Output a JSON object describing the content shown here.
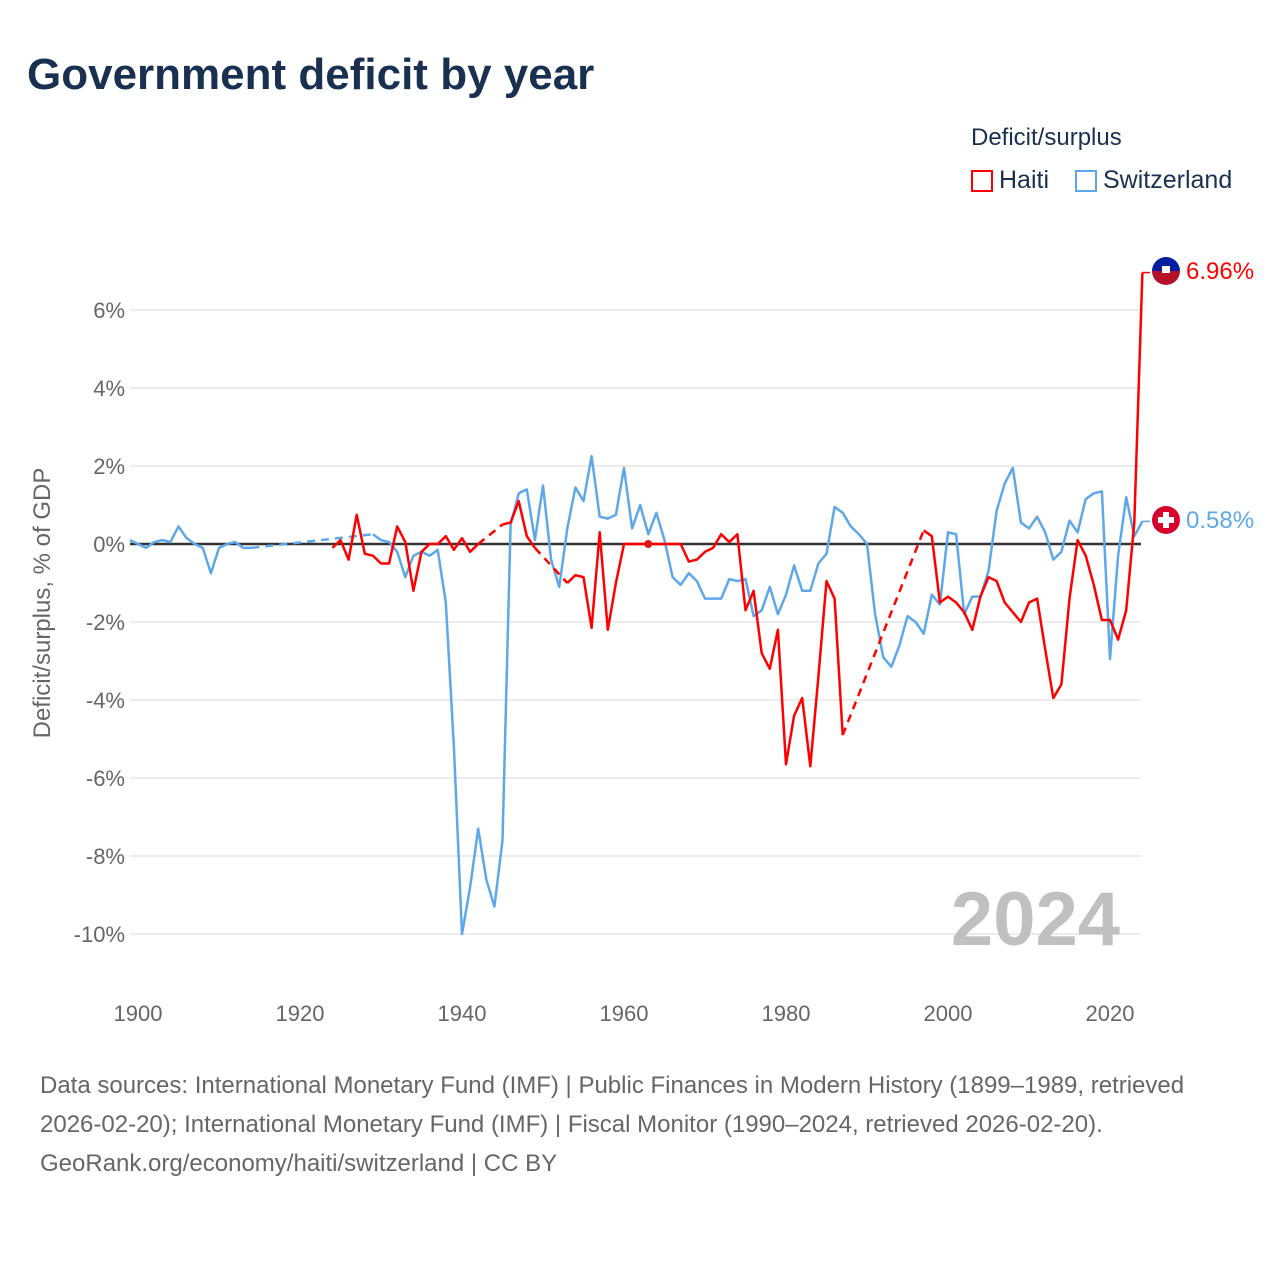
{
  "title": "Government deficit by year",
  "legend": {
    "title": "Deficit/surplus",
    "items": [
      "Haiti",
      "Switzerland"
    ]
  },
  "colors": {
    "Haiti": "#ff0000",
    "Switzerland": "#5ea8ea"
  },
  "year_watermark": "2024",
  "end_labels": {
    "Haiti": "6.96%",
    "Switzerland": "0.58%"
  },
  "footer": {
    "sources": "Data sources: International Monetary Fund (IMF) | Public Finances in Modern History (1899–1989, retrieved 2026-02-20); International Monetary Fund (IMF) | Fiscal Monitor (1990–2024, retrieved 2026-02-20).",
    "credit": "GeoRank.org/economy/haiti/switzerland | CC BY"
  },
  "chart_data": {
    "type": "line",
    "title": "Government deficit by year",
    "ylabel": "Deficit/surplus, % of GDP",
    "xlabel": "",
    "xlim": [
      1899,
      2024
    ],
    "ylim": [
      -11,
      7.5
    ],
    "xticks": [
      1900,
      1920,
      1940,
      1960,
      1980,
      2000,
      2020
    ],
    "yticks": [
      6,
      4,
      2,
      0,
      -2,
      -4,
      -6,
      -8,
      -10
    ],
    "ytick_labels": [
      "6%",
      "4%",
      "2%",
      "0%",
      "-2%",
      "-4%",
      "-6%",
      "-8%",
      "-10%"
    ],
    "xtick_labels": [
      "1900",
      "1920",
      "1940",
      "1960",
      "1980",
      "2000",
      "2020"
    ],
    "series": [
      {
        "name": "Switzerland",
        "points": [
          [
            1899,
            0.1
          ],
          [
            1900,
            0
          ],
          [
            1901,
            -0.1
          ],
          [
            1902,
            0.05
          ],
          [
            1903,
            0.1
          ],
          [
            1904,
            0.05
          ],
          [
            1905,
            0.45
          ],
          [
            1906,
            0.15
          ],
          [
            1907,
            0
          ],
          [
            1908,
            -0.1
          ],
          [
            1909,
            -0.75
          ],
          [
            1910,
            -0.1
          ],
          [
            1911,
            0
          ],
          [
            1912,
            0.05
          ],
          [
            1913,
            -0.1
          ],
          [
            1914,
            -0.1
          ],
          [
            1929,
            0.25
          ],
          [
            1930,
            0.1
          ],
          [
            1931,
            0.05
          ],
          [
            1932,
            -0.2
          ],
          [
            1933,
            -0.85
          ],
          [
            1934,
            -0.3
          ],
          [
            1935,
            -0.2
          ],
          [
            1936,
            -0.3
          ],
          [
            1937,
            -0.15
          ],
          [
            1938,
            -1.5
          ],
          [
            1939,
            -5.2
          ],
          [
            1940,
            -10
          ],
          [
            1941,
            -8.8
          ],
          [
            1942,
            -7.3
          ],
          [
            1943,
            -8.6
          ],
          [
            1944,
            -9.3
          ],
          [
            1945,
            -7.6
          ],
          [
            1946,
            0.5
          ],
          [
            1947,
            1.3
          ],
          [
            1948,
            1.4
          ],
          [
            1949,
            0.1
          ],
          [
            1950,
            1.5
          ],
          [
            1951,
            -0.4
          ],
          [
            1952,
            -1.1
          ],
          [
            1953,
            0.4
          ],
          [
            1954,
            1.45
          ],
          [
            1955,
            1.1
          ],
          [
            1956,
            2.25
          ],
          [
            1957,
            0.7
          ],
          [
            1958,
            0.65
          ],
          [
            1959,
            0.75
          ],
          [
            1960,
            1.95
          ],
          [
            1961,
            0.4
          ],
          [
            1962,
            1.0
          ],
          [
            1963,
            0.25
          ],
          [
            1964,
            0.8
          ],
          [
            1965,
            0.1
          ],
          [
            1966,
            -0.85
          ],
          [
            1967,
            -1.05
          ],
          [
            1968,
            -0.75
          ],
          [
            1969,
            -0.95
          ],
          [
            1970,
            -1.4
          ],
          [
            1971,
            -1.4
          ],
          [
            1972,
            -1.4
          ],
          [
            1973,
            -0.9
          ],
          [
            1974,
            -0.95
          ],
          [
            1975,
            -0.9
          ],
          [
            1976,
            -1.85
          ],
          [
            1977,
            -1.7
          ],
          [
            1978,
            -1.1
          ],
          [
            1979,
            -1.8
          ],
          [
            1980,
            -1.3
          ],
          [
            1981,
            -0.55
          ],
          [
            1982,
            -1.2
          ],
          [
            1983,
            -1.2
          ],
          [
            1984,
            -0.5
          ],
          [
            1985,
            -0.25
          ],
          [
            1986,
            0.95
          ],
          [
            1987,
            0.8
          ],
          [
            1988,
            0.45
          ],
          [
            1989,
            0.25
          ],
          [
            1990,
            0
          ],
          [
            1991,
            -1.8
          ],
          [
            1992,
            -2.9
          ],
          [
            1993,
            -3.15
          ],
          [
            1994,
            -2.6
          ],
          [
            1995,
            -1.85
          ],
          [
            1996,
            -2.0
          ],
          [
            1997,
            -2.3
          ],
          [
            1998,
            -1.3
          ],
          [
            1999,
            -1.55
          ],
          [
            2000,
            0.3
          ],
          [
            2001,
            0.25
          ],
          [
            2002,
            -1.8
          ],
          [
            2003,
            -1.35
          ],
          [
            2004,
            -1.35
          ],
          [
            2005,
            -0.7
          ],
          [
            2006,
            0.85
          ],
          [
            2007,
            1.55
          ],
          [
            2008,
            1.95
          ],
          [
            2009,
            0.55
          ],
          [
            2010,
            0.4
          ],
          [
            2011,
            0.7
          ],
          [
            2012,
            0.3
          ],
          [
            2013,
            -0.4
          ],
          [
            2014,
            -0.2
          ],
          [
            2015,
            0.6
          ],
          [
            2016,
            0.3
          ],
          [
            2017,
            1.15
          ],
          [
            2018,
            1.3
          ],
          [
            2019,
            1.35
          ],
          [
            2020,
            -2.95
          ],
          [
            2021,
            -0.3
          ],
          [
            2022,
            1.2
          ],
          [
            2023,
            0.2
          ],
          [
            2024,
            0.58
          ]
        ]
      },
      {
        "name": "Haiti",
        "points": [
          [
            1924,
            -0.1
          ],
          [
            1925,
            0.1
          ],
          [
            1926,
            -0.4
          ],
          [
            1927,
            0.75
          ],
          [
            1928,
            -0.25
          ],
          [
            1929,
            -0.3
          ],
          [
            1930,
            -0.5
          ],
          [
            1931,
            -0.5
          ],
          [
            1932,
            0.45
          ],
          [
            1933,
            0.05
          ],
          [
            1934,
            -1.2
          ],
          [
            1935,
            -0.2
          ],
          [
            1936,
            0
          ],
          [
            1937,
            0
          ],
          [
            1938,
            0.2
          ],
          [
            1939,
            -0.15
          ],
          [
            1940,
            0.15
          ],
          [
            1941,
            -0.2
          ],
          [
            1942,
            0
          ],
          [
            1945,
            0.5
          ],
          [
            1946,
            0.55
          ],
          [
            1947,
            1.1
          ],
          [
            1948,
            0.2
          ],
          [
            1949,
            -0.1
          ],
          [
            1953,
            -1.0
          ],
          [
            1954,
            -0.8
          ],
          [
            1955,
            -0.85
          ],
          [
            1956,
            -2.15
          ],
          [
            1957,
            0.3
          ],
          [
            1958,
            -2.2
          ],
          [
            1959,
            -1.0
          ],
          [
            1960,
            0
          ],
          [
            1961,
            0
          ],
          [
            1962,
            0
          ],
          [
            1963,
            0
          ],
          [
            1964,
            0
          ],
          [
            1965,
            0
          ],
          [
            1966,
            0
          ],
          [
            1967,
            0
          ],
          [
            1968,
            -0.45
          ],
          [
            1969,
            -0.4
          ],
          [
            1970,
            -0.2
          ],
          [
            1971,
            -0.1
          ],
          [
            1972,
            0.25
          ],
          [
            1973,
            0.05
          ],
          [
            1974,
            0.25
          ],
          [
            1975,
            -1.7
          ],
          [
            1976,
            -1.2
          ],
          [
            1977,
            -2.8
          ],
          [
            1978,
            -3.2
          ],
          [
            1979,
            -2.2
          ],
          [
            1980,
            -5.65
          ],
          [
            1981,
            -4.4
          ],
          [
            1982,
            -3.95
          ],
          [
            1983,
            -5.7
          ],
          [
            1984,
            -3.4
          ],
          [
            1985,
            -0.95
          ],
          [
            1986,
            -1.4
          ],
          [
            1987,
            -4.9
          ],
          [
            1997,
            0.35
          ],
          [
            1998,
            0.2
          ],
          [
            1999,
            -1.5
          ],
          [
            2000,
            -1.35
          ],
          [
            2001,
            -1.5
          ],
          [
            2002,
            -1.75
          ],
          [
            2003,
            -2.2
          ],
          [
            2004,
            -1.35
          ],
          [
            2005,
            -0.85
          ],
          [
            2006,
            -0.95
          ],
          [
            2007,
            -1.5
          ],
          [
            2008,
            -1.75
          ],
          [
            2009,
            -2.0
          ],
          [
            2010,
            -1.5
          ],
          [
            2011,
            -1.4
          ],
          [
            2012,
            -2.7
          ],
          [
            2013,
            -3.95
          ],
          [
            2014,
            -3.6
          ],
          [
            2015,
            -1.4
          ],
          [
            2016,
            0.1
          ],
          [
            2017,
            -0.3
          ],
          [
            2018,
            -1.05
          ],
          [
            2019,
            -1.95
          ],
          [
            2020,
            -1.95
          ],
          [
            2021,
            -2.45
          ],
          [
            2022,
            -1.7
          ],
          [
            2023,
            0.55
          ],
          [
            2024,
            6.96
          ]
        ]
      }
    ]
  }
}
